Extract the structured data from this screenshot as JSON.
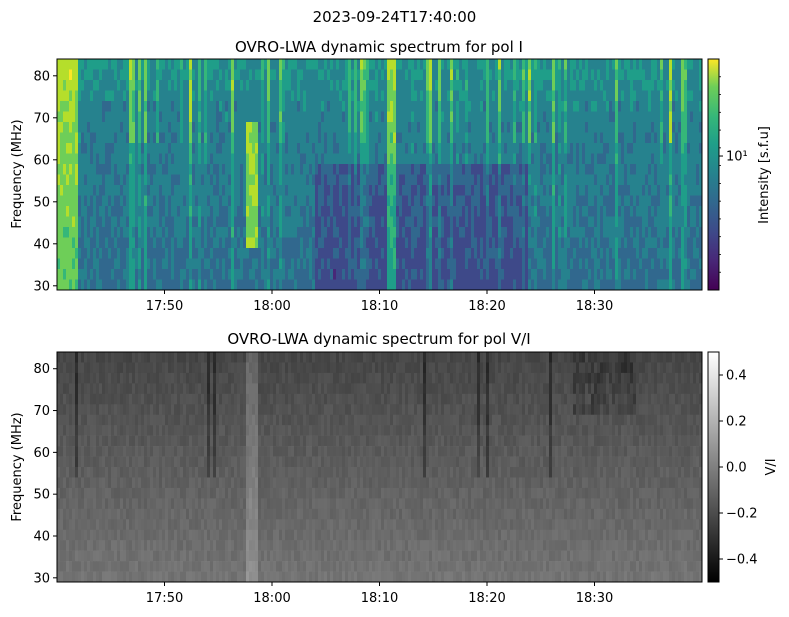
{
  "suptitle": "2023-09-24T17:40:00",
  "chart_data": [
    {
      "type": "heatmap",
      "title": "OVRO-LWA dynamic spectrum for pol I",
      "xlabel": "",
      "ylabel": "Frequency (MHz)",
      "x_ticks": [
        "17:50",
        "18:00",
        "18:10",
        "18:20",
        "18:30"
      ],
      "x_tick_minutes": [
        10,
        20,
        30,
        40,
        50
      ],
      "xlim_minutes": [
        0,
        60
      ],
      "y_ticks": [
        30,
        40,
        50,
        60,
        70,
        80
      ],
      "ylim": [
        29,
        84
      ],
      "colormap": "viridis",
      "colorbar": {
        "label": "Intensity [s.f.u]",
        "scale": "log",
        "tick_labels": [
          "10¹"
        ],
        "tick_fraction": 0.58
      },
      "features": [
        {
          "description_minutes": 0.7,
          "strength": 1.0
        },
        {
          "description_minutes": 18.2,
          "strength": 0.9
        },
        {
          "description_minutes": 31.0,
          "strength": 0.8
        }
      ]
    },
    {
      "type": "heatmap",
      "title": "OVRO-LWA dynamic spectrum for pol V/I",
      "xlabel": "",
      "ylabel": "Frequency (MHz)",
      "x_ticks": [
        "17:50",
        "18:00",
        "18:10",
        "18:20",
        "18:30"
      ],
      "x_tick_minutes": [
        10,
        20,
        30,
        40,
        50
      ],
      "xlim_minutes": [
        0,
        60
      ],
      "y_ticks": [
        30,
        40,
        50,
        60,
        70,
        80
      ],
      "ylim": [
        29,
        84
      ],
      "colormap": "gray",
      "colorbar": {
        "label": "V/I",
        "range": [
          -0.5,
          0.5
        ],
        "ticks": [
          0.4,
          0.2,
          0.0,
          -0.2,
          -0.4
        ],
        "tick_labels": [
          "0.4",
          "0.2",
          "0.0",
          "−0.2",
          "−0.4"
        ]
      }
    }
  ]
}
